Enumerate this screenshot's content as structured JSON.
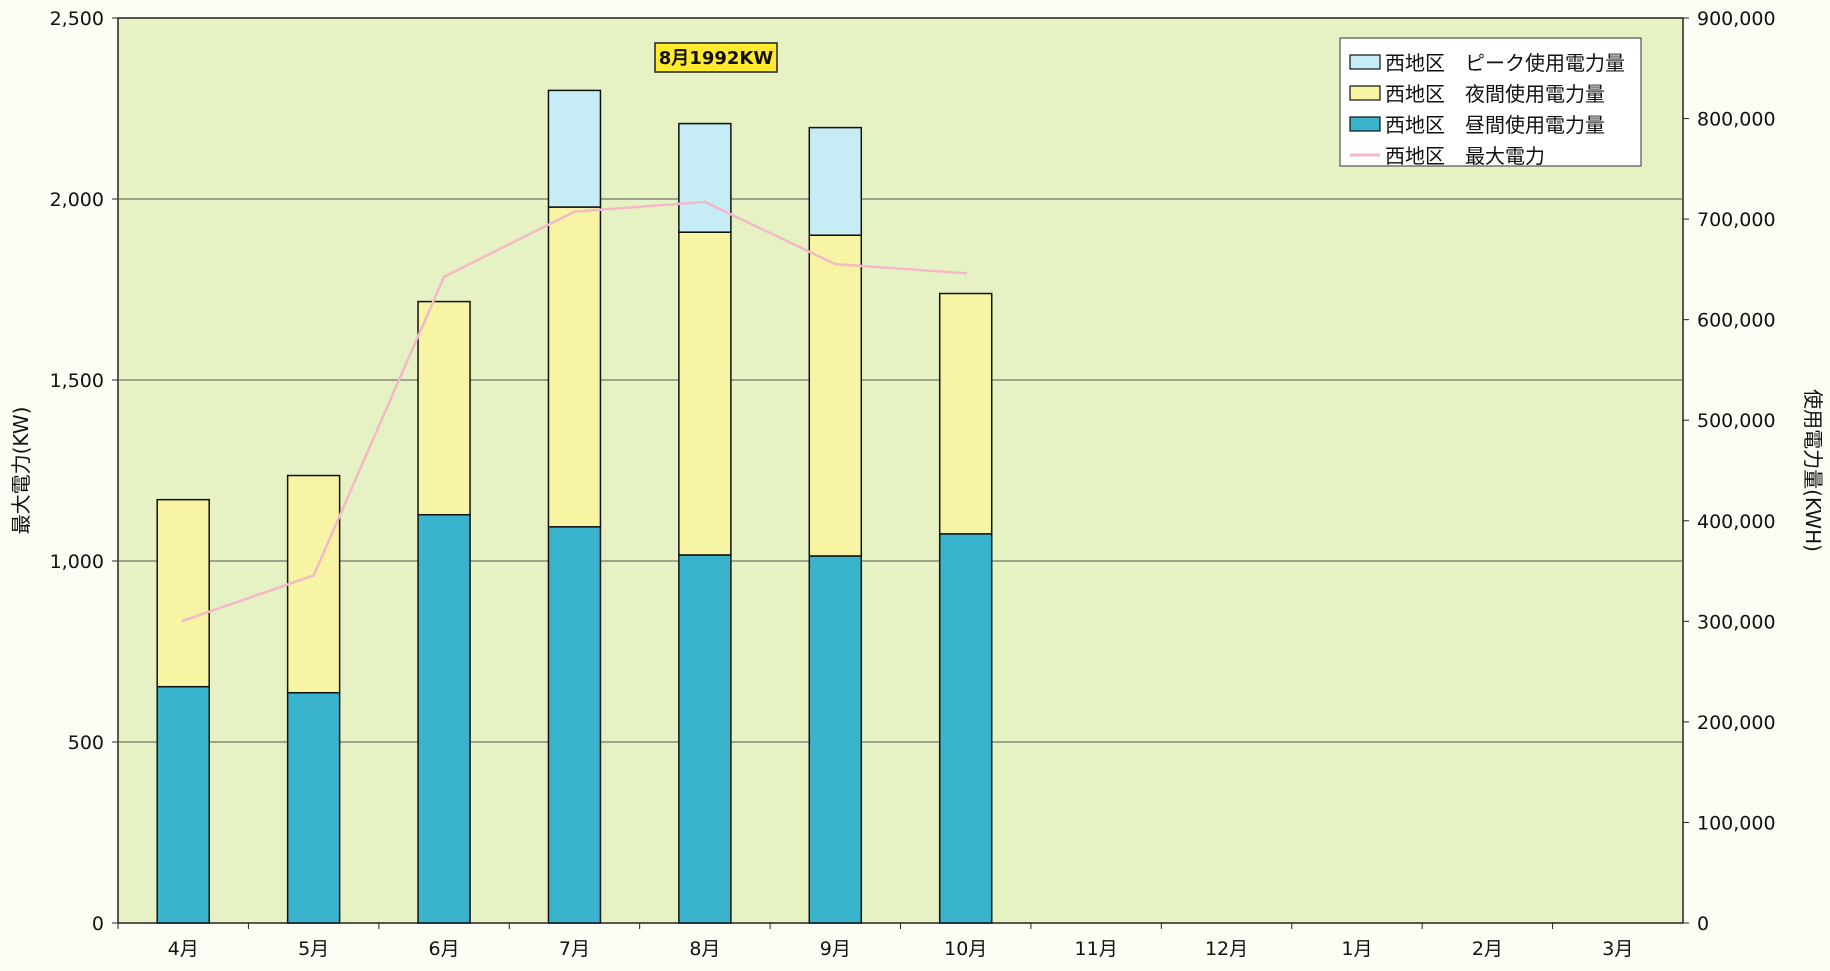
{
  "chart_data": {
    "type": "bar",
    "categories": [
      "4月",
      "5月",
      "6月",
      "7月",
      "8月",
      "9月",
      "10月",
      "11月",
      "12月",
      "1月",
      "2月",
      "3月"
    ],
    "series": [
      {
        "name": "西地区　昼間使用電力量",
        "axis": "right",
        "color": "#3ab3cc",
        "values": [
          235000,
          229000,
          406000,
          394000,
          366000,
          365000,
          387000,
          null,
          null,
          null,
          null,
          null
        ]
      },
      {
        "name": "西地区　夜間使用電力量",
        "axis": "right",
        "color": "#f7f4a3",
        "values": [
          186000,
          216000,
          212000,
          318000,
          321000,
          319000,
          239000,
          null,
          null,
          null,
          null,
          null
        ]
      },
      {
        "name": "西地区　ピーク使用電力量",
        "axis": "right",
        "color": "#c6ecf6",
        "values": [
          0,
          0,
          0,
          116000,
          108000,
          107000,
          0,
          null,
          null,
          null,
          null,
          null
        ]
      },
      {
        "name": "西地区　最大電力",
        "type": "line",
        "axis": "left",
        "color": "#f4b8c8",
        "values": [
          835,
          960,
          1785,
          1965,
          1992,
          1820,
          1795,
          null,
          null,
          null,
          null,
          null
        ]
      }
    ],
    "left_axis": {
      "label": "最大電力(KW)",
      "min": 0,
      "max": 2500,
      "ticks": [
        "0",
        "500",
        "1,000",
        "1,500",
        "2,000",
        "2,500"
      ]
    },
    "right_axis": {
      "label": "使用電力量(KWH)",
      "min": 0,
      "max": 900000,
      "ticks": [
        "0",
        "100,000",
        "200,000",
        "300,000",
        "400,000",
        "500,000",
        "600,000",
        "700,000",
        "800,000",
        "900,000"
      ]
    },
    "annotation": "8月1992KW",
    "legend_order": [
      2,
      1,
      0,
      3
    ],
    "legend_position": "top-right",
    "grid": true,
    "plot_background": "#e6f2c4"
  }
}
